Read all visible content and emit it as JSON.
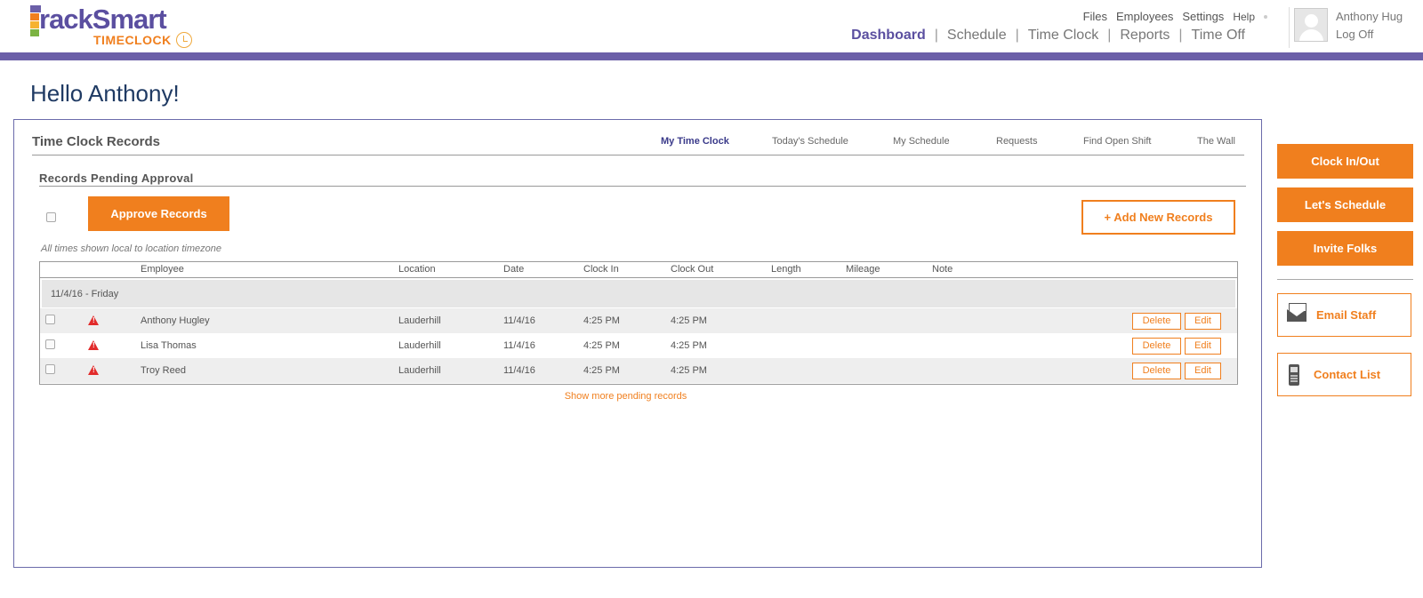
{
  "brand": {
    "name": "rackSmart",
    "sub": "TIMECLOCK",
    "colors": {
      "purple": "#5b4fa0",
      "orange": "#f07f1e"
    }
  },
  "util_links": [
    "Files",
    "Employees",
    "Settings",
    "Help"
  ],
  "main_nav": [
    "Dashboard",
    "Schedule",
    "Time Clock",
    "Reports",
    "Time Off"
  ],
  "user": {
    "name": "Anthony Hug",
    "logoff": "Log Off"
  },
  "greeting": "Hello Anthony!",
  "panel": {
    "title": "Time Clock Records",
    "tabs": [
      "My Time Clock",
      "Today's Schedule",
      "My Schedule",
      "Requests",
      "Find Open Shift",
      "The Wall"
    ],
    "section_title": "Records Pending Approval",
    "approve_label": "Approve Records",
    "add_label": "+ Add New Records",
    "tz_note": "All times shown local to location timezone",
    "columns": [
      "Employee",
      "Location",
      "Date",
      "Clock In",
      "Clock Out",
      "Length",
      "Mileage",
      "Note"
    ],
    "group_label": "11/4/16 - Friday",
    "rows": [
      {
        "employee": "Anthony Hugley",
        "location": "Lauderhill",
        "date": "11/4/16",
        "clock_in": "4:25 PM",
        "clock_out": "4:25 PM"
      },
      {
        "employee": "Lisa Thomas",
        "location": "Lauderhill",
        "date": "11/4/16",
        "clock_in": "4:25 PM",
        "clock_out": "4:25 PM"
      },
      {
        "employee": "Troy Reed",
        "location": "Lauderhill",
        "date": "11/4/16",
        "clock_in": "4:25 PM",
        "clock_out": "4:25 PM"
      }
    ],
    "delete_label": "Delete",
    "edit_label": "Edit",
    "show_more": "Show more pending records"
  },
  "side": {
    "clock_inout": "Clock In/Out",
    "lets_schedule": "Let's Schedule",
    "invite_folks": "Invite Folks",
    "email_staff": "Email Staff",
    "contact_list": "Contact List"
  }
}
